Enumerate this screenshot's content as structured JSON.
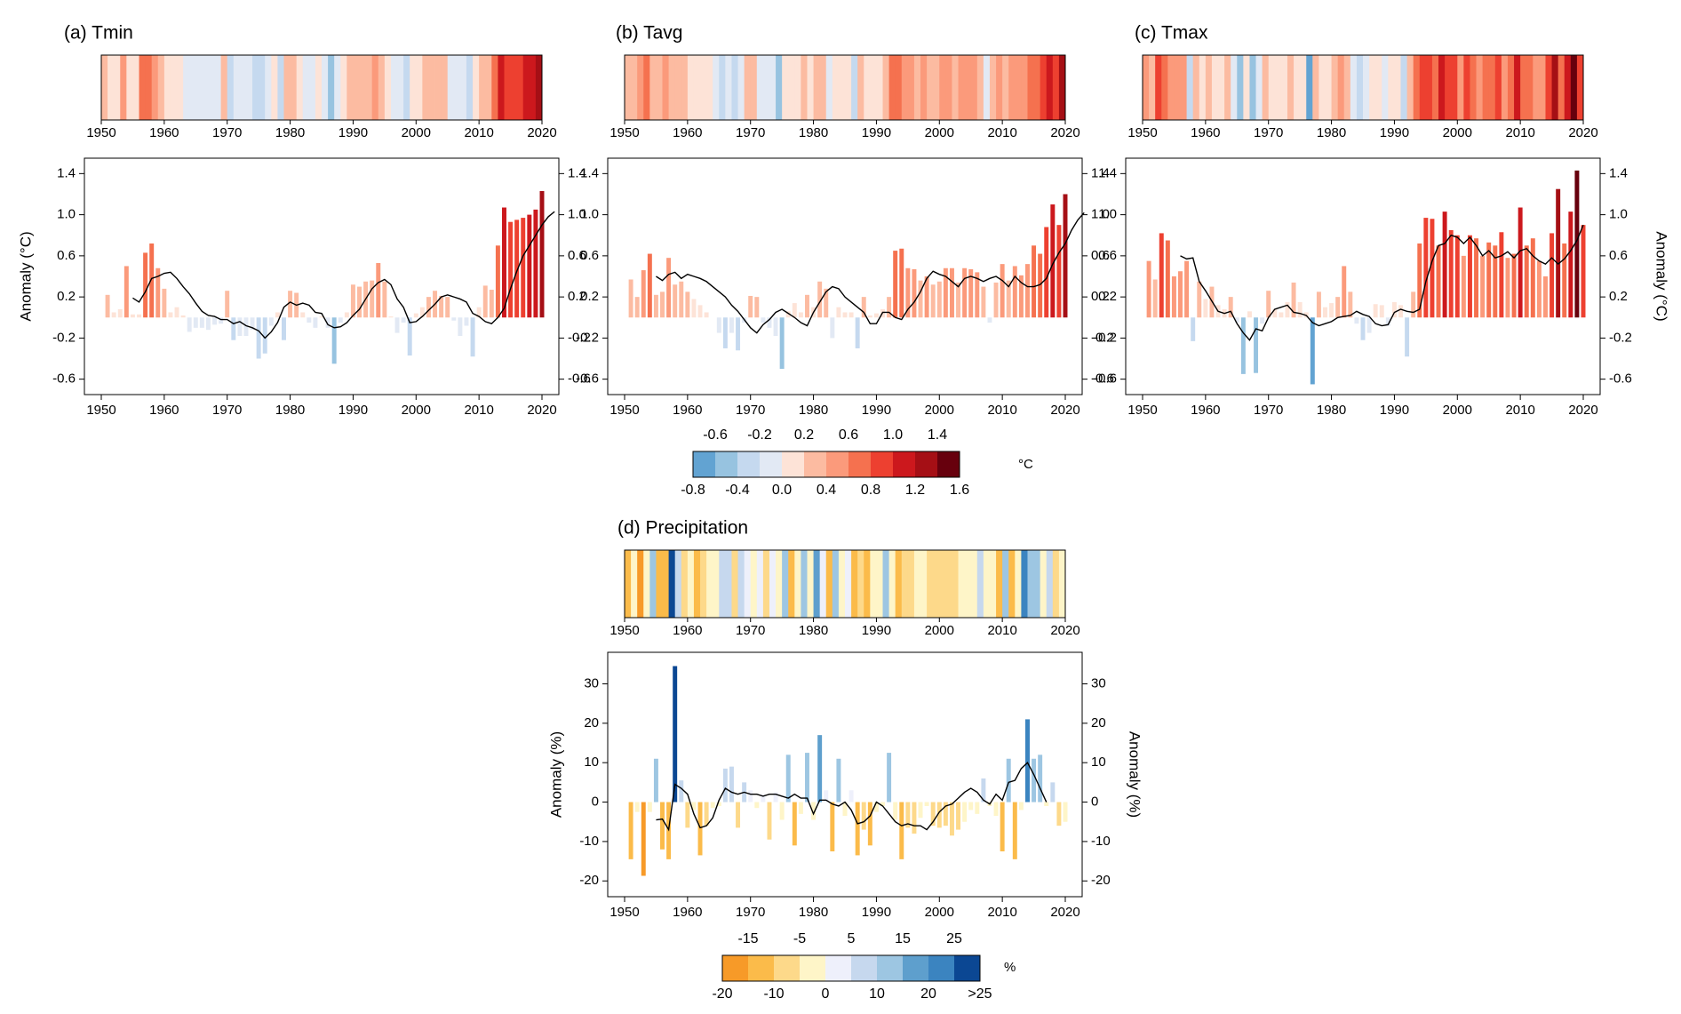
{
  "figure_units": {
    "temperature": "°C",
    "precipitation": "%"
  },
  "colorbars": {
    "temperature": {
      "colors": [
        "#62a3d2",
        "#97c3e0",
        "#c5d9ef",
        "#e2e9f4",
        "#fde3d7",
        "#fcbba1",
        "#fb9a7b",
        "#f5714f",
        "#ed4030",
        "#cc181d",
        "#a50f15",
        "#67000d"
      ],
      "top_labels": [
        "-0.6",
        "-0.2",
        "0.2",
        "0.6",
        "1.0",
        "1.4"
      ],
      "bottom_labels": [
        "-0.8",
        "-0.4",
        "0.0",
        "0.4",
        "0.8",
        "1.2",
        "1.6"
      ],
      "unit_label": "°C"
    },
    "precipitation": {
      "colors": [
        "#f79a28",
        "#fbbb4a",
        "#fdd98a",
        "#fef5c8",
        "#eef0fb",
        "#c6d8ee",
        "#9dc6e2",
        "#5e9fcd",
        "#3b84c0",
        "#0b4793"
      ],
      "top_labels": [
        "-15",
        "-5",
        "5",
        "15",
        "25"
      ],
      "bottom_labels": [
        "-20",
        "-10",
        "0",
        "10",
        "20",
        ">25"
      ],
      "unit_label": "%"
    }
  },
  "chart_data": [
    {
      "type": "bar",
      "panel": "a",
      "title": "(a) Tmin",
      "ylabel": "Anomaly (°C)",
      "ylabel_side": "left",
      "x_start": 1951,
      "x_end": 2020,
      "xlim": [
        1950,
        2020
      ],
      "xticks": [
        1950,
        1960,
        1970,
        1980,
        1990,
        2000,
        2010,
        2020
      ],
      "ylim": [
        -0.75,
        1.55
      ],
      "yticks": [
        1.4,
        1.0,
        0.6,
        0.2,
        -0.2,
        -0.6
      ],
      "ytick_labels": [
        "1.4",
        "1.0",
        "0.6",
        "0.2",
        "-0.2",
        "-0.6"
      ],
      "colorscale": "temperature",
      "values": [
        0.22,
        0.05,
        0.08,
        0.5,
        0.03,
        0.03,
        0.63,
        0.72,
        0.48,
        0.28,
        0.05,
        0.1,
        0.02,
        -0.14,
        -0.1,
        -0.1,
        -0.12,
        -0.07,
        -0.06,
        0.26,
        -0.22,
        -0.18,
        -0.18,
        -0.12,
        -0.4,
        -0.35,
        -0.08,
        0.05,
        -0.22,
        0.26,
        0.24,
        0.05,
        -0.05,
        -0.1,
        0.01,
        -0.1,
        -0.45,
        -0.05,
        0.05,
        0.32,
        0.3,
        0.35,
        0.36,
        0.53,
        0.35,
        0.01,
        -0.15,
        -0.05,
        -0.37,
        0.04,
        0.1,
        0.2,
        0.26,
        0.21,
        0.2,
        -0.03,
        -0.18,
        -0.08,
        -0.38,
        0.1,
        0.31,
        0.27,
        0.7,
        1.07,
        0.93,
        0.95,
        0.97,
        1.0,
        1.05,
        1.23
      ],
      "moving_average": [
        0.19,
        0.15,
        0.25,
        0.38,
        0.4,
        0.43,
        0.44,
        0.38,
        0.3,
        0.23,
        0.14,
        0.06,
        0.02,
        0.01,
        -0.02,
        -0.02,
        -0.06,
        -0.04,
        -0.08,
        -0.1,
        -0.13,
        -0.2,
        -0.14,
        -0.05,
        0.1,
        0.15,
        0.12,
        0.14,
        0.12,
        0.05,
        0.04,
        -0.07,
        -0.1,
        -0.09,
        -0.05,
        0.02,
        0.08,
        0.18,
        0.28,
        0.34,
        0.37,
        0.32,
        0.18,
        0.1,
        -0.05,
        -0.04,
        0.01,
        0.07,
        0.13,
        0.2,
        0.22,
        0.2,
        0.18,
        0.15,
        0.04,
        0.01,
        -0.04,
        -0.06,
        0.0,
        0.09,
        0.28,
        0.45,
        0.6,
        0.7,
        0.8,
        0.9,
        0.98,
        1.03
      ],
      "moving_average_start": 1955
    },
    {
      "type": "bar",
      "panel": "b",
      "title": "(b) Tavg",
      "ylabel": "",
      "ylabel_side": "none",
      "x_start": 1951,
      "x_end": 2020,
      "xlim": [
        1950,
        2020
      ],
      "xticks": [
        1950,
        1960,
        1970,
        1980,
        1990,
        2000,
        2010,
        2020
      ],
      "ylim": [
        -0.75,
        1.55
      ],
      "yticks": [
        1.4,
        1.0,
        0.6,
        0.2,
        -0.2,
        -0.6
      ],
      "ytick_labels": [
        "1.4",
        "1.0",
        "0.6",
        "0.2",
        "-0.2",
        "-0.6"
      ],
      "colorscale": "temperature",
      "values": [
        0.37,
        0.2,
        0.46,
        0.62,
        0.22,
        0.25,
        0.58,
        0.32,
        0.35,
        0.25,
        0.18,
        0.12,
        0.05,
        0.0,
        -0.15,
        -0.3,
        -0.15,
        -0.32,
        -0.05,
        0.21,
        0.2,
        -0.05,
        -0.1,
        -0.18,
        -0.5,
        0.06,
        0.14,
        0.05,
        0.22,
        0.1,
        0.35,
        0.28,
        -0.2,
        0.1,
        0.05,
        0.05,
        -0.3,
        0.2,
        0.02,
        0.04,
        0.08,
        0.2,
        0.65,
        0.67,
        0.48,
        0.47,
        0.36,
        0.4,
        0.32,
        0.35,
        0.48,
        0.48,
        0.34,
        0.48,
        0.47,
        0.44,
        0.3,
        -0.05,
        0.34,
        0.52,
        0.36,
        0.5,
        0.41,
        0.52,
        0.7,
        0.62,
        0.88,
        1.1,
        0.9,
        1.2
      ],
      "moving_average": [
        0.4,
        0.36,
        0.42,
        0.44,
        0.38,
        0.42,
        0.4,
        0.38,
        0.35,
        0.3,
        0.25,
        0.2,
        0.12,
        0.06,
        -0.02,
        -0.1,
        -0.15,
        -0.07,
        -0.02,
        0.05,
        0.08,
        0.04,
        0.0,
        -0.05,
        -0.08,
        0.05,
        0.15,
        0.25,
        0.3,
        0.28,
        0.2,
        0.15,
        0.1,
        0.05,
        -0.06,
        -0.06,
        0.05,
        0.05,
        0.0,
        -0.02,
        0.08,
        0.15,
        0.25,
        0.38,
        0.45,
        0.42,
        0.4,
        0.35,
        0.3,
        0.38,
        0.4,
        0.38,
        0.35,
        0.38,
        0.4,
        0.36,
        0.3,
        0.4,
        0.34,
        0.3,
        0.3,
        0.32,
        0.38,
        0.52,
        0.63,
        0.72,
        0.85,
        0.95,
        1.02
      ],
      "moving_average_start": 1955
    },
    {
      "type": "bar",
      "panel": "c",
      "title": "(c) Tmax",
      "ylabel": "Anomaly (°C)",
      "ylabel_side": "right",
      "x_start": 1951,
      "x_end": 2020,
      "xlim": [
        1950,
        2020
      ],
      "xticks": [
        1950,
        1960,
        1970,
        1980,
        1990,
        2000,
        2010,
        2020
      ],
      "ylim": [
        -0.75,
        1.55
      ],
      "yticks": [
        1.4,
        1.0,
        0.6,
        0.2,
        -0.2,
        -0.6
      ],
      "ytick_labels": [
        "1.4",
        "1.0",
        "0.6",
        "0.2",
        "-0.2",
        "-0.6"
      ],
      "colorscale": "temperature",
      "values": [
        0.55,
        0.37,
        0.82,
        0.75,
        0.4,
        0.45,
        0.55,
        -0.23,
        0.35,
        0.18,
        0.3,
        0.12,
        0.08,
        0.2,
        -0.05,
        -0.55,
        0.06,
        -0.54,
        -0.06,
        0.26,
        0.08,
        0.05,
        0.15,
        0.34,
        0.15,
        0.05,
        -0.65,
        0.25,
        0.1,
        0.14,
        0.2,
        0.5,
        0.25,
        -0.06,
        -0.22,
        -0.15,
        0.13,
        0.12,
        -0.08,
        0.15,
        0.12,
        -0.38,
        0.25,
        0.72,
        0.97,
        0.96,
        0.7,
        1.03,
        0.85,
        0.8,
        0.6,
        0.8,
        0.77,
        0.6,
        0.73,
        0.7,
        0.83,
        0.58,
        0.62,
        1.07,
        0.7,
        0.77,
        0.55,
        0.4,
        0.82,
        1.25,
        0.72,
        1.03,
        1.43,
        0.9
      ],
      "moving_average": [
        0.6,
        0.57,
        0.58,
        0.35,
        0.26,
        0.16,
        0.06,
        0.04,
        0.06,
        -0.06,
        -0.15,
        -0.22,
        -0.11,
        -0.13,
        0.0,
        0.08,
        0.1,
        0.12,
        0.05,
        0.04,
        0.02,
        -0.05,
        -0.08,
        -0.06,
        -0.04,
        0.0,
        0.01,
        0.02,
        0.06,
        0.03,
        0.01,
        -0.06,
        -0.08,
        -0.07,
        0.05,
        0.08,
        0.06,
        0.05,
        0.08,
        0.35,
        0.55,
        0.7,
        0.72,
        0.8,
        0.78,
        0.72,
        0.78,
        0.7,
        0.6,
        0.65,
        0.58,
        0.6,
        0.64,
        0.58,
        0.65,
        0.67,
        0.6,
        0.55,
        0.52,
        0.58,
        0.52,
        0.57,
        0.65,
        0.75,
        0.9
      ],
      "moving_average_start": 1956
    },
    {
      "type": "bar",
      "panel": "d",
      "title": "(d) Precipitation",
      "ylabel": "Anomaly (%)",
      "ylabel_side": "both",
      "x_start": 1951,
      "x_end": 2020,
      "xlim": [
        1950,
        2020
      ],
      "xticks": [
        1950,
        1960,
        1970,
        1980,
        1990,
        2000,
        2010,
        2020
      ],
      "ylim": [
        -24,
        38
      ],
      "yticks": [
        30,
        20,
        10,
        0,
        -10,
        -20
      ],
      "ytick_labels": [
        "30",
        "20",
        "10",
        "0",
        "-10",
        "-20"
      ],
      "colorscale": "precipitation",
      "values": [
        -14.5,
        -2.5,
        -18.7,
        -2.5,
        11,
        -12,
        -14.5,
        34.5,
        5.5,
        -6.5,
        -2,
        -13.5,
        -6,
        -1.5,
        -1,
        8.5,
        9,
        -6.5,
        5,
        3,
        -1.5,
        2,
        -9.5,
        2.5,
        -4.5,
        12,
        -11,
        -3,
        12.5,
        -4.5,
        17,
        3,
        -12.5,
        11,
        -3.5,
        3,
        -13.5,
        -7,
        -11,
        -2.5,
        -1,
        12.5,
        -4.5,
        -14.5,
        -6.5,
        -8,
        -4,
        -1,
        -6,
        -6.5,
        -6,
        -8.5,
        -7,
        -5,
        -2,
        -3,
        6,
        -1,
        -3.5,
        -12.5,
        11,
        -14.5,
        -2,
        21,
        11,
        12,
        -1,
        5,
        -6,
        -5
      ],
      "moving_average": [
        -4.5,
        -4.3,
        -7,
        4.5,
        3.5,
        2,
        -3,
        -6.5,
        -6,
        -4,
        0.5,
        3.5,
        2.5,
        2,
        2.5,
        2,
        2,
        1.5,
        2,
        2,
        1.5,
        1,
        2,
        1,
        1,
        -3,
        0.5,
        0.5,
        -0.5,
        -1,
        0,
        -2,
        -5.5,
        -5,
        -3.5,
        0,
        -1,
        -3,
        -5,
        -6,
        -5.5,
        -6,
        -6,
        -7,
        -5,
        -2.5,
        -1,
        -0.5,
        1,
        2.5,
        3.5,
        2.5,
        0.5,
        -0.5,
        2,
        0.5,
        5,
        5.5,
        8.5,
        10,
        7,
        3.5,
        0
      ],
      "moving_average_start": 1955
    }
  ]
}
